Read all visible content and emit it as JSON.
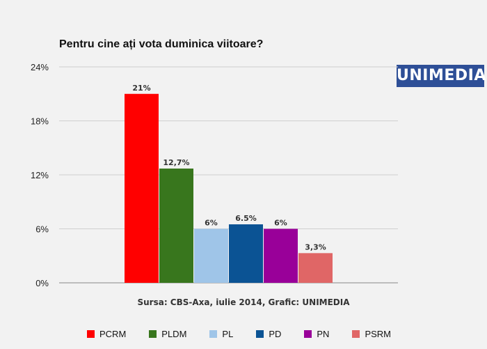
{
  "logo_text": "UNIMEDIA",
  "source_note": "Sursa: CBS-Axa, iulie 2014, Grafic: UNIMEDIA",
  "chart_data": {
    "type": "bar",
    "title": "Pentru cine ați vota duminica viitoare?",
    "categories": [
      "PCRM",
      "PLDM",
      "PL",
      "PD",
      "PN",
      "PSRM"
    ],
    "values": [
      21,
      12.7,
      6,
      6.5,
      6,
      3.3
    ],
    "data_labels": [
      "21%",
      "12,7%",
      "6%",
      "6.5%",
      "6%",
      "3,3%"
    ],
    "colors": [
      "#ff0000",
      "#38761d",
      "#9fc5e8",
      "#0b5394",
      "#990099",
      "#e06666"
    ],
    "ylim": [
      0,
      24
    ],
    "yticks": [
      0,
      6,
      12,
      18,
      24
    ],
    "ytick_labels": [
      "0%",
      "6%",
      "12%",
      "18%",
      "24%"
    ],
    "grid": true,
    "legend_position": "bottom"
  }
}
